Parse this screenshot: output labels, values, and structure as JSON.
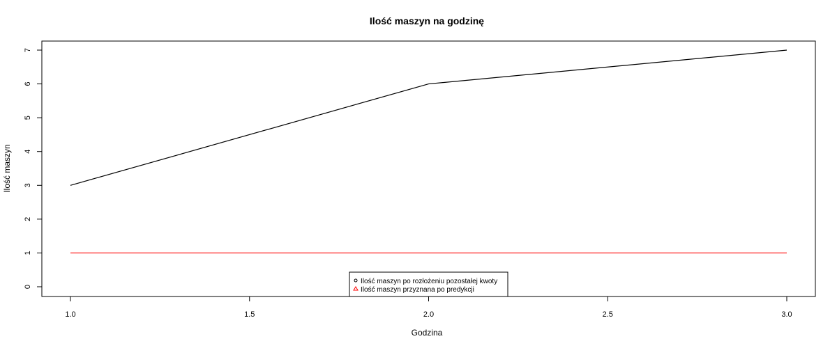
{
  "chart_data": {
    "type": "line",
    "title": "Ilość maszyn na godzinę",
    "xlabel": "Godzina",
    "ylabel": "Ilość maszyn",
    "xlim": [
      1.0,
      3.0
    ],
    "ylim": [
      0,
      7
    ],
    "x_ticks": [
      "1.0",
      "1.5",
      "2.0",
      "2.5",
      "3.0"
    ],
    "y_ticks": [
      "0",
      "1",
      "2",
      "3",
      "4",
      "5",
      "6",
      "7"
    ],
    "grid": false,
    "legend_position": "bottom-center",
    "series": [
      {
        "name": "Ilość maszyn po rozłożeniu pozostałej kwoty",
        "x": [
          1,
          2,
          3
        ],
        "y": [
          3,
          6,
          7
        ],
        "color": "#000000",
        "marker": "circle"
      },
      {
        "name": "Ilość maszyn przyznana po predykcji",
        "x": [
          1,
          2,
          3
        ],
        "y": [
          1,
          1,
          1
        ],
        "color": "#ff0000",
        "marker": "triangle"
      }
    ]
  }
}
